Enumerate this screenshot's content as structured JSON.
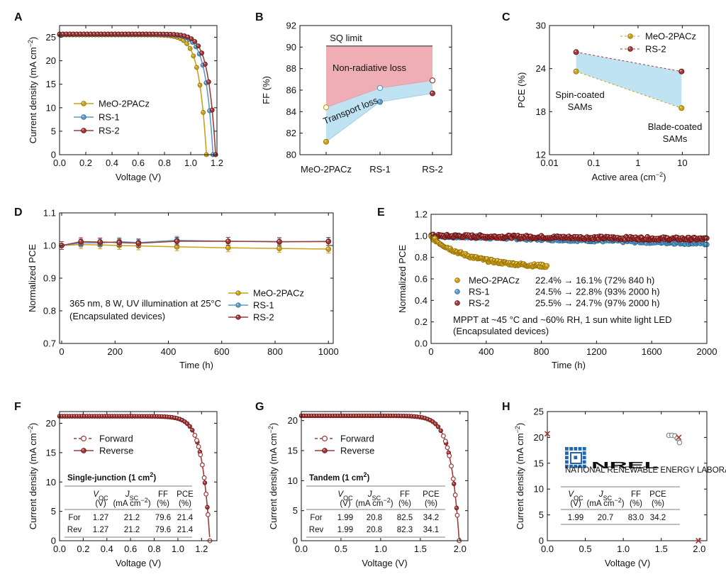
{
  "colors": {
    "meo": "#C9A21A",
    "rs1": "#5B9BC8",
    "rs2": "#9E3B3B",
    "pink_fill": "#EFAEB6",
    "blue_fill": "#BFE3F3",
    "axis": "#111111"
  },
  "panels": {
    "A": {
      "letter": "A",
      "xlabel": "Voltage (V)",
      "ylabel_main": "Current density (mA cm",
      "ylabel_sup": "−2",
      "ylabel_end": ")",
      "xticks": [
        "0.0",
        "0.2",
        "0.4",
        "0.6",
        "0.8",
        "1.0",
        "1.2"
      ],
      "yticks": [
        "0",
        "5",
        "10",
        "15",
        "20",
        "25"
      ],
      "legend": [
        "MeO-2PACz",
        "RS-1",
        "RS-2"
      ]
    },
    "B": {
      "letter": "B",
      "ylabel": "FF (%)",
      "yticks": [
        "80",
        "82",
        "84",
        "86",
        "88",
        "90",
        "92"
      ],
      "xticks": [
        "MeO-2PACz",
        "RS-1",
        "RS-2"
      ],
      "sq_label": "SQ limit",
      "nonrad_label": "Non-radiative loss",
      "transport_label": "Transport loss"
    },
    "C": {
      "letter": "C",
      "xlabel_main": "Active area (cm",
      "xlabel_sup": "−2",
      "xlabel_end": ")",
      "ylabel": "PCE (%)",
      "xticks": [
        "0.01",
        "0.1",
        "1",
        "10"
      ],
      "yticks": [
        "12",
        "18",
        "24",
        "30"
      ],
      "legend": [
        "MeO-2PACz",
        "RS-2"
      ],
      "spin_label_1": "Spin-coated",
      "spin_label_2": "SAMs",
      "blade_label_1": "Blade-coated",
      "blade_label_2": "SAMs"
    },
    "D": {
      "letter": "D",
      "xlabel": "Time (h)",
      "ylabel": "Normalized PCE",
      "xticks": [
        "0",
        "200",
        "400",
        "600",
        "800",
        "1000"
      ],
      "yticks": [
        "0.7",
        "0.8",
        "0.9",
        "1.0",
        "1.1"
      ],
      "legend": [
        "MeO-2PACz",
        "RS-1",
        "RS-2"
      ],
      "note_1": "365 nm, 8 W, UV illumination at 25°C",
      "note_2": "(Encapsulated devices)"
    },
    "E": {
      "letter": "E",
      "xlabel": "Time (h)",
      "ylabel": "Normalized PCE",
      "xticks": [
        "0",
        "400",
        "800",
        "1200",
        "1600",
        "2000"
      ],
      "yticks": [
        "0.0",
        "0.2",
        "0.4",
        "0.6",
        "0.8",
        "1.0",
        "1.2"
      ],
      "legend": [
        {
          "name": "MeO-2PACz",
          "desc": "22.4% → 16.1% (72% 840 h)"
        },
        {
          "name": "RS-1",
          "desc": "24.5% → 22.8% (93% 2000 h)"
        },
        {
          "name": "RS-2",
          "desc": "25.5% → 24.7% (97% 2000 h)"
        }
      ],
      "note_1": "MPPT at ~45 °C and ~60% RH, 1 sun white light LED",
      "note_2": "(Encapsulated devices)"
    },
    "F": {
      "letter": "F",
      "xlabel": "Voltage (V)",
      "ylabel_main": "Current density (mA cm",
      "ylabel_sup": "−2",
      "ylabel_end": ")",
      "xticks": [
        "0.0",
        "0.2",
        "0.4",
        "0.6",
        "0.8",
        "1.0",
        "1.2"
      ],
      "yticks": [
        "0",
        "5",
        "10",
        "15",
        "20"
      ],
      "legend": [
        "Forward",
        "Reverse"
      ],
      "table_title": "Single-junction  (1 cm",
      "table_title_sup": "2",
      "table_title_end": ")",
      "table_header_1": [
        "",
        "V",
        "J",
        "FF",
        "PCE"
      ],
      "table_header_sub": [
        "",
        "OC",
        "SC",
        "",
        ""
      ],
      "table_header_2": [
        "",
        "(V)",
        "(mA cm",
        "(%)",
        "(%)"
      ],
      "table_rows": [
        [
          "For",
          "1.27",
          "21.2",
          "79.6",
          "21.4"
        ],
        [
          "Rev",
          "1.27",
          "21.2",
          "79.6",
          "21.4"
        ]
      ]
    },
    "G": {
      "letter": "G",
      "xlabel": "Voltage (V)",
      "ylabel_main": "Current density (mA cm",
      "ylabel_sup": "−2",
      "ylabel_end": ")",
      "xticks": [
        "0.0",
        "0.5",
        "1.0",
        "1.5",
        "2.0"
      ],
      "yticks": [
        "0",
        "5",
        "10",
        "15",
        "20"
      ],
      "legend": [
        "Forward",
        "Reverse"
      ],
      "table_title": "Tandem  (1 cm",
      "table_title_sup": "2",
      "table_title_end": ")",
      "table_header_1": [
        "",
        "V",
        "J",
        "FF",
        "PCE"
      ],
      "table_header_sub": [
        "",
        "OC",
        "SC",
        "",
        ""
      ],
      "table_header_2": [
        "",
        "(V)",
        "(mA cm",
        "(%)",
        "(%)"
      ],
      "table_rows": [
        [
          "For",
          "1.99",
          "20.8",
          "82.5",
          "34.2"
        ],
        [
          "Rev",
          "1.99",
          "20.8",
          "82.3",
          "34.1"
        ]
      ]
    },
    "H": {
      "letter": "H",
      "xlabel": "Voltage (V)",
      "ylabel_main": "Current density (mA cm",
      "ylabel_sup": "−2",
      "ylabel_end": ")",
      "xticks": [
        "0.0",
        "0.5",
        "1.0",
        "1.5",
        "2.0"
      ],
      "yticks": [
        "0",
        "5",
        "10",
        "15",
        "20",
        "25"
      ],
      "logo_text": "NREL",
      "logo_subtitle": "NATIONAL RENEWABLE ENERGY LABORATORY",
      "table_header_1": [
        "V",
        "J",
        "FF",
        "PCE"
      ],
      "table_header_sub": [
        "OC",
        "SC",
        "",
        ""
      ],
      "table_header_2": [
        "(V)",
        "(mA cm",
        "(%)",
        "(%)"
      ],
      "table_rows": [
        [
          "1.99",
          "20.7",
          "83.0",
          "34.2"
        ]
      ]
    }
  },
  "chart_data": [
    {
      "panel": "A",
      "type": "line",
      "xlabel": "Voltage (V)",
      "ylabel": "Current density (mA cm−2)",
      "xlim": [
        0,
        1.2
      ],
      "ylim": [
        0,
        27.5
      ],
      "series": [
        {
          "name": "MeO-2PACz",
          "jsc": 25.5,
          "voc": 1.12
        },
        {
          "name": "RS-1",
          "jsc": 25.6,
          "voc": 1.17
        },
        {
          "name": "RS-2",
          "jsc": 25.7,
          "voc": 1.19
        }
      ]
    },
    {
      "panel": "B",
      "type": "line",
      "categories": [
        "MeO-2PACz",
        "RS-1",
        "RS-2"
      ],
      "ylim": [
        80,
        92
      ],
      "ylabel": "FF (%)",
      "sq_limit": 90.1,
      "series": [
        {
          "name": "Upper (hollow)",
          "values": [
            84.4,
            86.2,
            86.9
          ]
        },
        {
          "name": "Measured",
          "values": [
            81.2,
            84.9,
            85.7
          ]
        }
      ]
    },
    {
      "panel": "C",
      "type": "scatter",
      "xscale": "log",
      "xlim": [
        0.01,
        40
      ],
      "ylim": [
        12,
        30
      ],
      "xlabel": "Active area (cm−2)",
      "ylabel": "PCE (%)",
      "series": [
        {
          "name": "MeO-2PACz",
          "x": [
            0.04,
            9.6
          ],
          "y": [
            23.6,
            18.5
          ]
        },
        {
          "name": "RS-2",
          "x": [
            0.04,
            9.6
          ],
          "y": [
            26.3,
            23.6
          ]
        }
      ]
    },
    {
      "panel": "D",
      "type": "line",
      "xlim": [
        0,
        1000
      ],
      "ylim": [
        0.7,
        1.1
      ],
      "xlabel": "Time (h)",
      "ylabel": "Normalized PCE",
      "x": [
        0,
        72,
        144,
        216,
        288,
        432,
        624,
        816,
        1000
      ],
      "series": [
        {
          "name": "MeO-2PACz",
          "values": [
            1.0,
            1.003,
            1.002,
            1.0,
            0.999,
            0.996,
            0.993,
            0.991,
            0.989
          ],
          "err": [
            0.012,
            0.012,
            0.012,
            0.012,
            0.012,
            0.012,
            0.012,
            0.012,
            0.012
          ]
        },
        {
          "name": "RS-1",
          "values": [
            1.0,
            1.008,
            1.008,
            1.012,
            1.009,
            1.016,
            1.013,
            1.011,
            1.013
          ],
          "err": [
            0.012,
            0.012,
            0.012,
            0.012,
            0.012,
            0.012,
            0.012,
            0.012,
            0.012
          ]
        },
        {
          "name": "RS-2",
          "values": [
            1.0,
            1.012,
            1.011,
            1.009,
            1.007,
            1.013,
            1.013,
            1.012,
            1.012
          ],
          "err": [
            0.012,
            0.012,
            0.012,
            0.012,
            0.012,
            0.012,
            0.012,
            0.012,
            0.012
          ]
        }
      ]
    },
    {
      "panel": "E",
      "type": "scatter",
      "xlim": [
        0,
        2000
      ],
      "ylim": [
        0,
        1.2
      ],
      "xlabel": "Time (h)",
      "ylabel": "Normalized PCE",
      "series": [
        {
          "name": "MeO-2PACz",
          "t_end": 840,
          "start": 0.99,
          "end": 0.72
        },
        {
          "name": "RS-1",
          "t_end": 2000,
          "start": 1.0,
          "end": 0.93
        },
        {
          "name": "RS-2",
          "t_end": 2000,
          "start": 1.0,
          "end": 0.97
        }
      ]
    },
    {
      "panel": "F",
      "type": "line",
      "xlim": [
        0,
        1.33
      ],
      "ylim": [
        0,
        22
      ],
      "series": [
        {
          "name": "Forward",
          "jsc": 21.2,
          "voc": 1.27
        },
        {
          "name": "Reverse",
          "jsc": 21.2,
          "voc": 1.27
        }
      ]
    },
    {
      "panel": "G",
      "type": "line",
      "xlim": [
        0,
        2.1
      ],
      "ylim": [
        0,
        21.5
      ],
      "series": [
        {
          "name": "Forward",
          "jsc": 20.8,
          "voc": 1.99
        },
        {
          "name": "Reverse",
          "jsc": 20.8,
          "voc": 1.99
        }
      ]
    },
    {
      "panel": "H",
      "type": "scatter",
      "xlim": [
        0,
        2.1
      ],
      "ylim": [
        0,
        25
      ],
      "series": [
        {
          "name": "Cross markers",
          "x": [
            0.0,
            1.73,
            1.99
          ],
          "y": [
            20.7,
            20.0,
            0.0
          ]
        },
        {
          "name": "Hollow markers",
          "x": [
            1.6,
            1.64,
            1.68,
            1.71,
            1.74
          ],
          "y": [
            20.4,
            20.4,
            20.3,
            19.8,
            19.0
          ]
        }
      ]
    }
  ]
}
